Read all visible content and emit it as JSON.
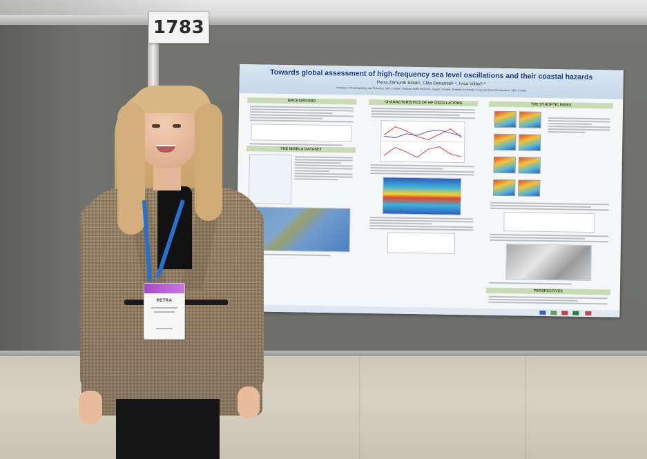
{
  "booth_number": "1783",
  "poster": {
    "title": "Towards global assessment of high-frequency sea level oscillations and their coastal hazards",
    "authors": "Petra Zemunik Selak¹, Cléa Denamiel¹·², Ivica Vilibić¹·²",
    "affiliations": "¹Institute of Oceanography and Fisheries, Split, Croatia; ²Institute Ruđer Bošković, Zagreb, Croatia; ³Institute for Adriatic Crops and Karst Reclamation, Split, Croatia",
    "sections": {
      "background": "BACKGROUND",
      "mhsla_dataset": "THE MISELA DATASET",
      "hf_characteristics": "CHARACTERISTICS OF HF OSCILLATIONS",
      "synoptic_index": "THE SYNOPTIC INDEX",
      "perspectives": "PERSPECTIVES"
    }
  },
  "badge": {
    "name": "PETRA"
  },
  "colors": {
    "panel": "#6f706d",
    "poster_title": "#1f3f7a",
    "section_header": "#c8dbb4",
    "lanyard": "#2a6fc9",
    "badge_top": "#a64ac9"
  }
}
